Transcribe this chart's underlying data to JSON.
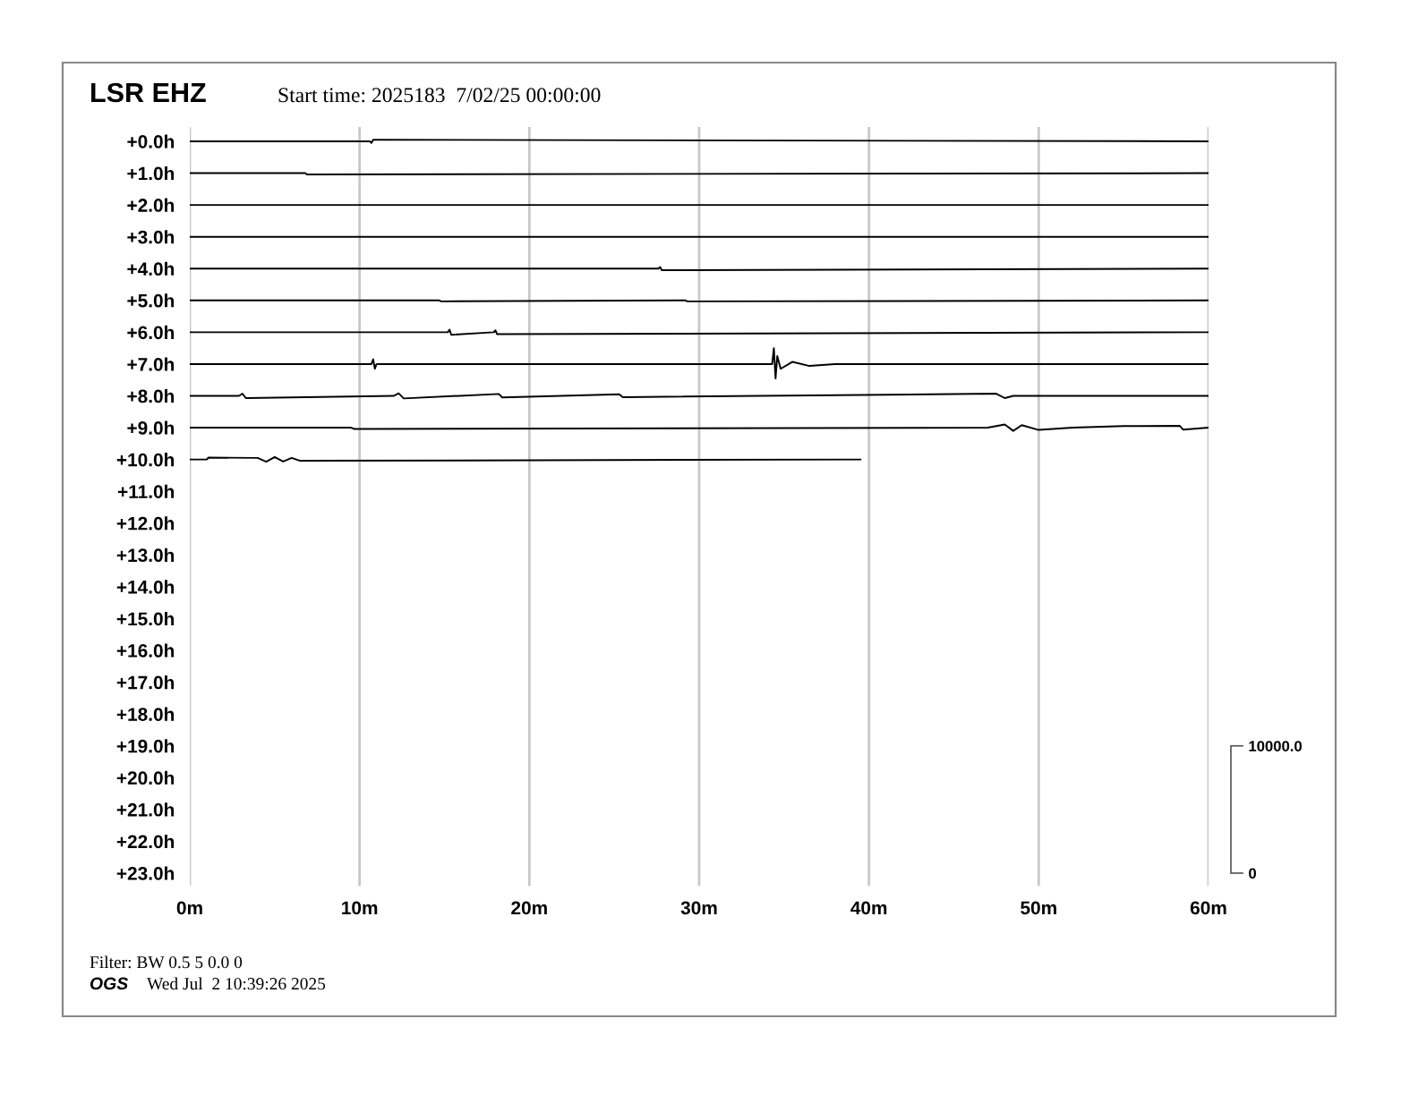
{
  "chart_data": {
    "type": "line",
    "title": "LSR EHZ",
    "subtitle": "Start time: 2025183  7/02/25 00:00:00",
    "annotations": [
      "Filter: BW 0.5 5 0.0 0",
      "OGS",
      "Wed Jul  2 10:39:26 2025"
    ],
    "xlim": [
      0,
      60
    ],
    "xticks": [
      {
        "value": 0,
        "label": "0m"
      },
      {
        "value": 10,
        "label": "10m"
      },
      {
        "value": 20,
        "label": "20m"
      },
      {
        "value": 30,
        "label": "30m"
      },
      {
        "value": 40,
        "label": "40m"
      },
      {
        "value": 50,
        "label": "50m"
      },
      {
        "value": 60,
        "label": "60m"
      }
    ],
    "ylim": [
      23.4,
      -0.45
    ],
    "yticks": [
      {
        "value": 0,
        "label": "+0.0h"
      },
      {
        "value": 1,
        "label": "+1.0h"
      },
      {
        "value": 2,
        "label": "+2.0h"
      },
      {
        "value": 3,
        "label": "+3.0h"
      },
      {
        "value": 4,
        "label": "+4.0h"
      },
      {
        "value": 5,
        "label": "+5.0h"
      },
      {
        "value": 6,
        "label": "+6.0h"
      },
      {
        "value": 7,
        "label": "+7.0h"
      },
      {
        "value": 8,
        "label": "+8.0h"
      },
      {
        "value": 9,
        "label": "+9.0h"
      },
      {
        "value": 10,
        "label": "+10.0h"
      },
      {
        "value": 11,
        "label": "+11.0h"
      },
      {
        "value": 12,
        "label": "+12.0h"
      },
      {
        "value": 13,
        "label": "+13.0h"
      },
      {
        "value": 14,
        "label": "+14.0h"
      },
      {
        "value": 15,
        "label": "+15.0h"
      },
      {
        "value": 16,
        "label": "+16.0h"
      },
      {
        "value": 17,
        "label": "+17.0h"
      },
      {
        "value": 18,
        "label": "+18.0h"
      },
      {
        "value": 19,
        "label": "+19.0h"
      },
      {
        "value": 20,
        "label": "+20.0h"
      },
      {
        "value": 21,
        "label": "+21.0h"
      },
      {
        "value": 22,
        "label": "+22.0h"
      },
      {
        "value": 23,
        "label": "+23.0h"
      }
    ],
    "y2lim": [
      -1000,
      58625
    ],
    "y2ticks": [
      0,
      {
        "value": 10000,
        "label": "10000.0"
      }
    ],
    "grid": "x",
    "line_style": "solid",
    "marker": "none",
    "series": [
      {
        "color": "#000000",
        "x": [
          0,
          10.6,
          10.7,
          10.8,
          60
        ],
        "values": [
          0,
          0,
          0.05,
          -0.05,
          0
        ]
      },
      {
        "color": "#000000",
        "x": [
          0,
          6.8,
          6.9,
          60
        ],
        "values": [
          1,
          1,
          1.04,
          1
        ]
      },
      {
        "color": "#000000",
        "x": [
          0,
          60
        ],
        "values": [
          2,
          2
        ]
      },
      {
        "color": "#000000",
        "x": [
          0,
          60
        ],
        "values": [
          3,
          3
        ]
      },
      {
        "color": "#000000",
        "x": [
          0,
          27.6,
          27.7,
          27.8,
          60
        ],
        "values": [
          4,
          4,
          3.95,
          4.05,
          4
        ]
      },
      {
        "color": "#000000",
        "x": [
          0,
          14.7,
          14.8,
          29.2,
          29.3,
          60
        ],
        "values": [
          5,
          5,
          5.03,
          5,
          5.03,
          5
        ]
      },
      {
        "color": "#000000",
        "x": [
          0,
          15.2,
          15.3,
          15.4,
          17.9,
          18,
          18.1,
          60
        ],
        "values": [
          6,
          6,
          5.92,
          6.08,
          6,
          5.94,
          6.06,
          6
        ]
      },
      {
        "color": "#000000",
        "x": [
          0,
          10.7,
          10.8,
          10.9,
          11,
          34.3,
          34.4,
          34.5,
          34.6,
          34.8,
          35.5,
          36.5,
          38,
          60
        ],
        "values": [
          7,
          7,
          6.85,
          7.15,
          7,
          7,
          6.5,
          7.45,
          6.75,
          7.15,
          6.93,
          7.06,
          7,
          7
        ]
      },
      {
        "color": "#000000",
        "x": [
          0,
          2.9,
          3.1,
          3.3,
          12,
          12.3,
          12.6,
          18.2,
          18.4,
          25.3,
          25.5,
          47.5,
          48,
          48.5,
          60
        ],
        "values": [
          8,
          8,
          7.93,
          8.07,
          8,
          7.92,
          8.08,
          7.94,
          8.05,
          7.95,
          8.04,
          7.93,
          8.07,
          8,
          8
        ]
      },
      {
        "color": "#000000",
        "x": [
          0,
          9.5,
          9.7,
          47,
          48,
          48.5,
          49,
          50,
          52,
          55,
          58.3,
          58.5,
          60
        ],
        "values": [
          9,
          9,
          9.04,
          9,
          8.9,
          9.1,
          8.92,
          9.07,
          9,
          8.95,
          8.94,
          9.06,
          9
        ]
      },
      {
        "color": "#000000",
        "x": [
          0,
          1,
          1.1,
          4,
          4.5,
          5,
          5.5,
          6,
          6.5,
          39.5
        ],
        "values": [
          10,
          10,
          9.94,
          9.95,
          10.07,
          9.92,
          10.06,
          9.95,
          10.04,
          10
        ]
      }
    ]
  }
}
